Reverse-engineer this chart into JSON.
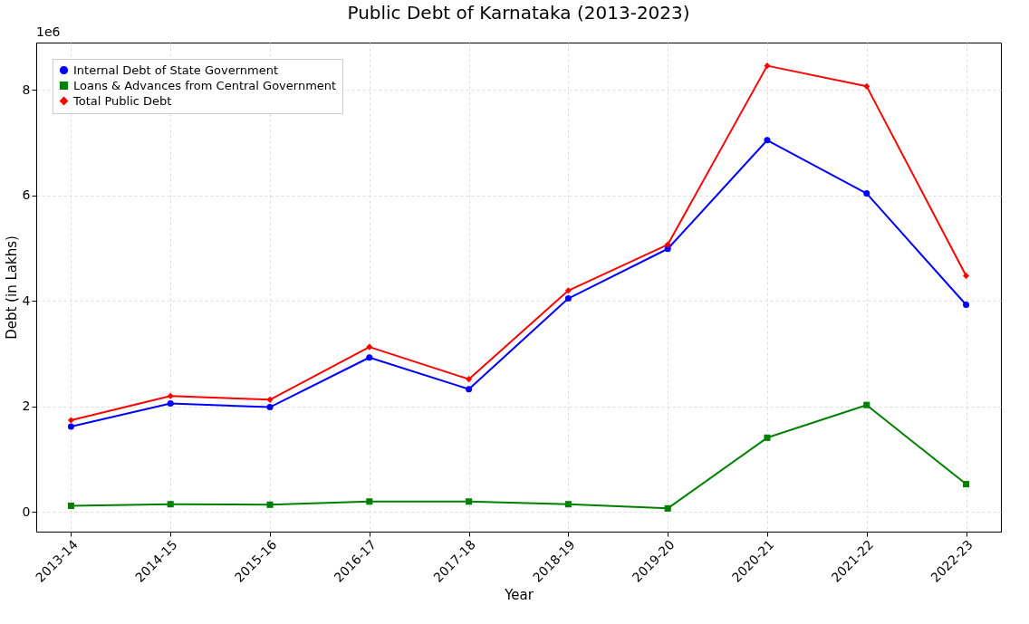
{
  "chart_data": {
    "type": "line",
    "title": "Public Debt of Karnataka (2013-2023)",
    "xlabel": "Year",
    "ylabel": "Debt (in Lakhs)",
    "categories": [
      "2013-14",
      "2014-15",
      "2015-16",
      "2016-17",
      "2017-18",
      "2018-19",
      "2019-20",
      "2020-21",
      "2021-22",
      "2022-23"
    ],
    "series": [
      {
        "name": "Internal Debt of State Government",
        "color": "#0000ff",
        "marker": "circle",
        "values": [
          1.62,
          2.06,
          1.99,
          2.93,
          2.33,
          4.05,
          4.99,
          7.05,
          6.04,
          3.93
        ]
      },
      {
        "name": "Loans & Advances from Central Government",
        "color": "#008000",
        "marker": "square",
        "values": [
          0.12,
          0.15,
          0.14,
          0.2,
          0.2,
          0.15,
          0.07,
          1.41,
          2.03,
          0.53
        ]
      },
      {
        "name": "Total Public Debt",
        "color": "#ff0000",
        "marker": "diamond",
        "values": [
          1.74,
          2.2,
          2.13,
          3.13,
          2.52,
          4.2,
          5.07,
          8.46,
          8.07,
          4.48
        ]
      }
    ],
    "ylim": [
      -0.37,
      8.9
    ],
    "yticks": [
      0,
      2,
      4,
      6,
      8
    ],
    "annotations": [
      "1e6"
    ],
    "grid": true,
    "line_style": "solid",
    "legend": "top left"
  }
}
